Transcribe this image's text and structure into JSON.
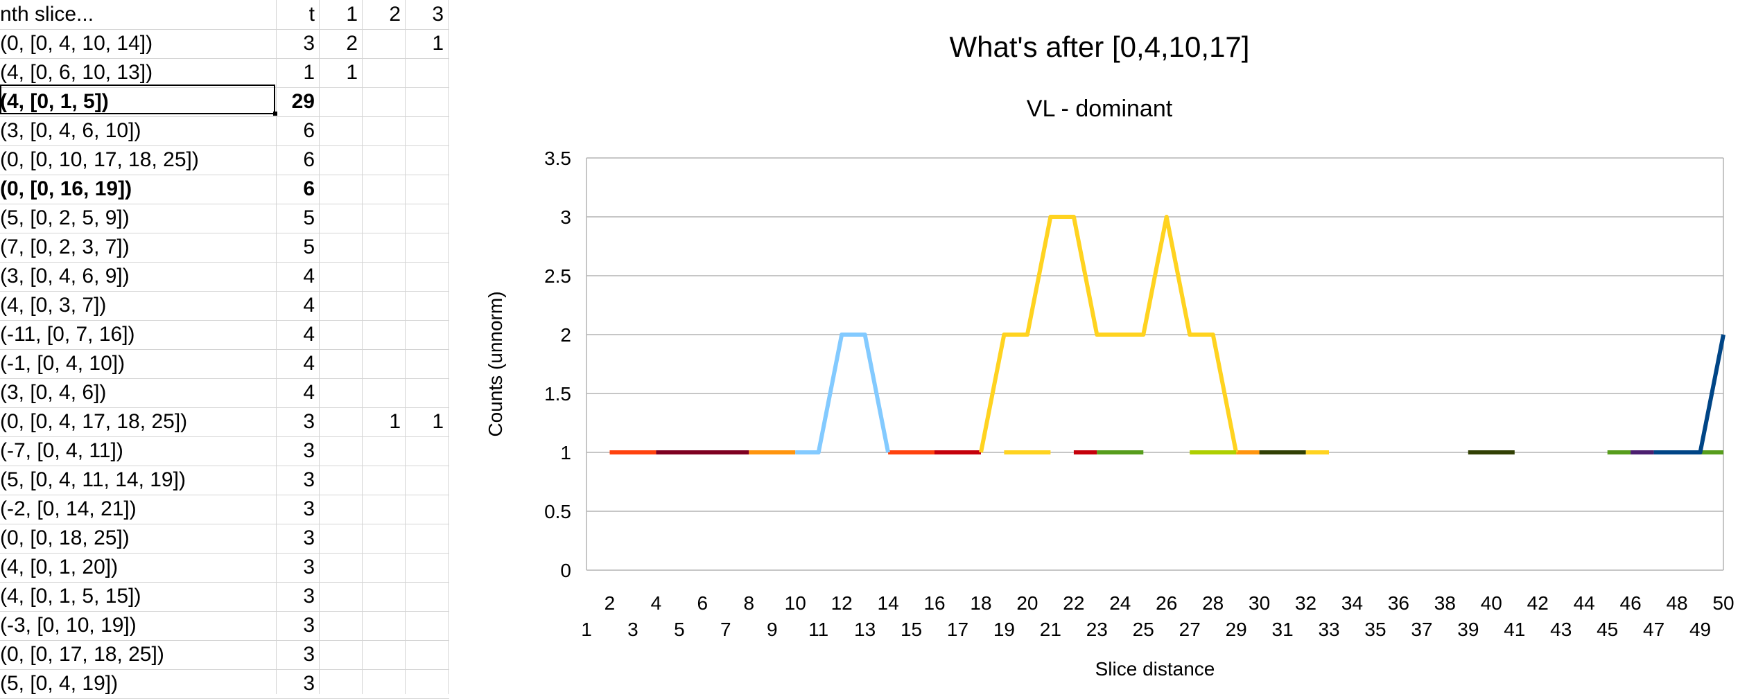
{
  "sheet": {
    "header": {
      "label": "nth slice...",
      "t": "t",
      "c1": "1",
      "c2": "2",
      "c3": "3"
    },
    "rows": [
      {
        "label": "(0, [0, 4, 10, 14])",
        "t": "3",
        "c1": "2",
        "c2": "",
        "c3": "1",
        "bold": false
      },
      {
        "label": "(4, [0, 6, 10, 13])",
        "t": "1",
        "c1": "1",
        "c2": "",
        "c3": "",
        "bold": false
      },
      {
        "label": "(4, [0, 1, 5])",
        "t": "29",
        "c1": "",
        "c2": "",
        "c3": "",
        "bold": true
      },
      {
        "label": "(3, [0, 4, 6, 10])",
        "t": "6",
        "c1": "",
        "c2": "",
        "c3": "",
        "bold": false
      },
      {
        "label": "(0, [0, 10, 17, 18, 25])",
        "t": "6",
        "c1": "",
        "c2": "",
        "c3": "",
        "bold": false
      },
      {
        "label": "(0, [0, 16, 19])",
        "t": "6",
        "c1": "",
        "c2": "",
        "c3": "",
        "bold": true
      },
      {
        "label": "(5, [0, 2, 5, 9])",
        "t": "5",
        "c1": "",
        "c2": "",
        "c3": "",
        "bold": false
      },
      {
        "label": "(7, [0, 2, 3, 7])",
        "t": "5",
        "c1": "",
        "c2": "",
        "c3": "",
        "bold": false
      },
      {
        "label": "(3, [0, 4, 6, 9])",
        "t": "4",
        "c1": "",
        "c2": "",
        "c3": "",
        "bold": false
      },
      {
        "label": "(4, [0, 3, 7])",
        "t": "4",
        "c1": "",
        "c2": "",
        "c3": "",
        "bold": false
      },
      {
        "label": "(-11, [0, 7, 16])",
        "t": "4",
        "c1": "",
        "c2": "",
        "c3": "",
        "bold": false
      },
      {
        "label": "(-1, [0, 4, 10])",
        "t": "4",
        "c1": "",
        "c2": "",
        "c3": "",
        "bold": false
      },
      {
        "label": "(3, [0, 4, 6])",
        "t": "4",
        "c1": "",
        "c2": "",
        "c3": "",
        "bold": false
      },
      {
        "label": "(0, [0, 4, 17, 18, 25])",
        "t": "3",
        "c1": "",
        "c2": "1",
        "c3": "1",
        "bold": false
      },
      {
        "label": "(-7, [0, 4, 11])",
        "t": "3",
        "c1": "",
        "c2": "",
        "c3": "",
        "bold": false
      },
      {
        "label": "(5, [0, 4, 11, 14, 19])",
        "t": "3",
        "c1": "",
        "c2": "",
        "c3": "",
        "bold": false
      },
      {
        "label": "(-2, [0, 14, 21])",
        "t": "3",
        "c1": "",
        "c2": "",
        "c3": "",
        "bold": false
      },
      {
        "label": "(0, [0, 18, 25])",
        "t": "3",
        "c1": "",
        "c2": "",
        "c3": "",
        "bold": false
      },
      {
        "label": "(4, [0, 1, 20])",
        "t": "3",
        "c1": "",
        "c2": "",
        "c3": "",
        "bold": false
      },
      {
        "label": "(4, [0, 1, 5, 15])",
        "t": "3",
        "c1": "",
        "c2": "",
        "c3": "",
        "bold": false
      },
      {
        "label": "(-3, [0, 10, 19])",
        "t": "3",
        "c1": "",
        "c2": "",
        "c3": "",
        "bold": false
      },
      {
        "label": "(0, [0, 17, 18, 25])",
        "t": "3",
        "c1": "",
        "c2": "",
        "c3": "",
        "bold": false
      },
      {
        "label": "(5, [0, 4, 19])",
        "t": "3",
        "c1": "",
        "c2": "",
        "c3": "",
        "bold": false
      }
    ]
  },
  "chart_data": {
    "type": "line",
    "title": "What's after [0,4,10,17]",
    "subtitle": "VL - dominant",
    "xlabel": "Slice distance",
    "ylabel": "Counts (unnorm)",
    "ylim": [
      0,
      3.5
    ],
    "yticks": [
      "0",
      "0.5",
      "1",
      "1.5",
      "2",
      "2.5",
      "3",
      "3.5"
    ],
    "x": [
      1,
      2,
      3,
      4,
      5,
      6,
      7,
      8,
      9,
      10,
      11,
      12,
      13,
      14,
      15,
      16,
      17,
      18,
      19,
      20,
      21,
      22,
      23,
      24,
      25,
      26,
      27,
      28,
      29,
      30,
      31,
      32,
      33,
      34,
      35,
      36,
      37,
      38,
      39,
      40,
      41,
      42,
      43,
      44,
      45,
      46,
      47,
      48,
      49,
      50
    ],
    "grid": true,
    "legend": "none",
    "series": [
      {
        "color": "#ff420e",
        "values": [
          null,
          1,
          1,
          1,
          null,
          null,
          null,
          null,
          null,
          null,
          null,
          null,
          null,
          1,
          1,
          1,
          null,
          null,
          null,
          null,
          null,
          null,
          null,
          null,
          null,
          null,
          null,
          null,
          null,
          null,
          null,
          null,
          null,
          null,
          null,
          null,
          null,
          null,
          null,
          null,
          null,
          null,
          null,
          null,
          null,
          null,
          null,
          null,
          null,
          null
        ]
      },
      {
        "color": "#7e0021",
        "values": [
          null,
          null,
          null,
          1,
          1,
          1,
          1,
          1,
          null,
          null,
          null,
          null,
          null,
          null,
          null,
          null,
          null,
          null,
          null,
          null,
          null,
          null,
          null,
          null,
          null,
          null,
          null,
          null,
          null,
          null,
          null,
          null,
          null,
          null,
          null,
          null,
          null,
          null,
          null,
          null,
          null,
          null,
          null,
          null,
          null,
          null,
          null,
          null,
          null,
          null
        ]
      },
      {
        "color": "#ff950e",
        "values": [
          null,
          null,
          null,
          null,
          null,
          null,
          null,
          1,
          1,
          1,
          null,
          null,
          null,
          null,
          null,
          null,
          null,
          null,
          null,
          null,
          null,
          null,
          null,
          null,
          null,
          null,
          null,
          null,
          1,
          1,
          null,
          null,
          null,
          null,
          null,
          null,
          null,
          null,
          null,
          null,
          null,
          null,
          null,
          null,
          null,
          null,
          null,
          null,
          null,
          null
        ]
      },
      {
        "color": "#83caff",
        "values": [
          null,
          null,
          null,
          null,
          null,
          null,
          null,
          null,
          null,
          1,
          1,
          2,
          2,
          1,
          null,
          null,
          null,
          null,
          null,
          null,
          null,
          null,
          null,
          null,
          null,
          null,
          null,
          null,
          null,
          null,
          null,
          null,
          null,
          null,
          null,
          null,
          null,
          null,
          null,
          null,
          null,
          null,
          null,
          null,
          null,
          null,
          null,
          null,
          null,
          null
        ]
      },
      {
        "color": "#c5000b",
        "values": [
          null,
          null,
          null,
          null,
          null,
          null,
          null,
          null,
          null,
          null,
          null,
          null,
          null,
          null,
          null,
          1,
          1,
          1,
          null,
          null,
          null,
          1,
          1,
          null,
          null,
          null,
          null,
          null,
          null,
          null,
          null,
          null,
          null,
          null,
          null,
          null,
          null,
          null,
          null,
          null,
          null,
          null,
          null,
          null,
          null,
          null,
          null,
          null,
          null,
          null
        ]
      },
      {
        "color": "#ffd320",
        "values": [
          null,
          null,
          null,
          null,
          null,
          null,
          null,
          null,
          null,
          null,
          null,
          null,
          null,
          null,
          null,
          null,
          null,
          1,
          2,
          2,
          3,
          3,
          2,
          2,
          2,
          3,
          2,
          2,
          1,
          null,
          null,
          1,
          1,
          null,
          null,
          null,
          null,
          null,
          null,
          null,
          null,
          null,
          null,
          null,
          null,
          null,
          null,
          null,
          null,
          null
        ]
      },
      {
        "color": "#ffd320",
        "values": [
          null,
          null,
          null,
          null,
          null,
          null,
          null,
          null,
          null,
          null,
          null,
          null,
          null,
          null,
          null,
          null,
          null,
          null,
          1,
          1,
          1,
          null,
          null,
          null,
          null,
          null,
          null,
          null,
          null,
          null,
          null,
          null,
          null,
          null,
          null,
          null,
          null,
          null,
          null,
          null,
          null,
          null,
          null,
          null,
          null,
          null,
          null,
          null,
          null,
          null
        ]
      },
      {
        "color": "#579d1c",
        "values": [
          null,
          null,
          null,
          null,
          null,
          null,
          null,
          null,
          null,
          null,
          null,
          null,
          null,
          null,
          null,
          null,
          null,
          null,
          null,
          null,
          null,
          null,
          1,
          1,
          1,
          null,
          null,
          null,
          null,
          null,
          null,
          null,
          null,
          null,
          null,
          null,
          null,
          null,
          null,
          null,
          null,
          null,
          null,
          null,
          1,
          1,
          null,
          null,
          1,
          1
        ]
      },
      {
        "color": "#aecf00",
        "values": [
          null,
          null,
          null,
          null,
          null,
          null,
          null,
          null,
          null,
          null,
          null,
          null,
          null,
          null,
          null,
          null,
          null,
          null,
          null,
          null,
          null,
          null,
          null,
          null,
          null,
          null,
          1,
          1,
          1,
          null,
          null,
          null,
          null,
          null,
          null,
          null,
          null,
          null,
          null,
          null,
          null,
          null,
          null,
          null,
          null,
          null,
          null,
          null,
          null,
          null
        ]
      },
      {
        "color": "#314004",
        "values": [
          null,
          null,
          null,
          null,
          null,
          null,
          null,
          null,
          null,
          null,
          null,
          null,
          null,
          null,
          null,
          null,
          null,
          null,
          null,
          null,
          null,
          null,
          null,
          null,
          null,
          null,
          null,
          null,
          null,
          1,
          1,
          1,
          null,
          null,
          null,
          null,
          null,
          null,
          1,
          1,
          1,
          null,
          null,
          null,
          null,
          null,
          null,
          null,
          null,
          null
        ]
      },
      {
        "color": "#4b1f6f",
        "values": [
          null,
          null,
          null,
          null,
          null,
          null,
          null,
          null,
          null,
          null,
          null,
          null,
          null,
          null,
          null,
          null,
          null,
          null,
          null,
          null,
          null,
          null,
          null,
          null,
          null,
          null,
          null,
          null,
          null,
          null,
          null,
          null,
          null,
          null,
          null,
          null,
          null,
          null,
          null,
          null,
          null,
          null,
          null,
          null,
          null,
          1,
          1,
          null,
          null,
          null
        ]
      },
      {
        "color": "#004586",
        "values": [
          null,
          null,
          null,
          null,
          null,
          null,
          null,
          null,
          null,
          null,
          null,
          null,
          null,
          null,
          null,
          null,
          null,
          null,
          null,
          null,
          null,
          null,
          null,
          null,
          null,
          null,
          null,
          null,
          null,
          null,
          null,
          null,
          null,
          null,
          null,
          null,
          null,
          null,
          null,
          null,
          null,
          null,
          null,
          null,
          null,
          null,
          1,
          1,
          1,
          2
        ]
      }
    ]
  }
}
